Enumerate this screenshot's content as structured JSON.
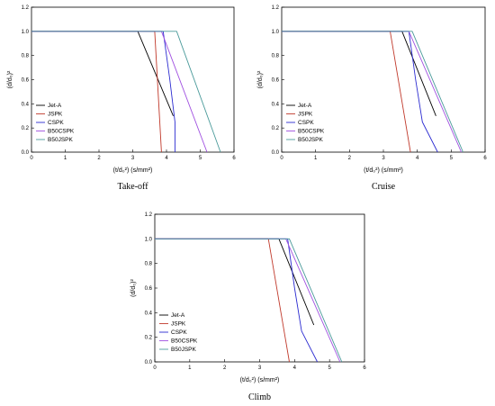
{
  "chart_data": [
    {
      "type": "line",
      "title": "Take-off",
      "xlabel": "(t/d₀²) (s/mm²)",
      "ylabel": "(d/d₀)²",
      "xlim": [
        0,
        6
      ],
      "ylim": [
        0,
        1.2
      ],
      "xticks": [
        "0",
        "1",
        "2",
        "3",
        "4",
        "5",
        "6"
      ],
      "yticks": [
        "0.0",
        "0.2",
        "0.4",
        "0.6",
        "0.8",
        "1.0",
        "1.2"
      ],
      "legend_position": "bottom-left",
      "grid": false,
      "series": [
        {
          "name": "Jet-A",
          "color": "#000000",
          "x": [
            0,
            3.15,
            4.2
          ],
          "y": [
            1.0,
            1.0,
            0.3
          ]
        },
        {
          "name": "JSPK",
          "color": "#c0392b",
          "x": [
            0,
            3.65,
            3.85
          ],
          "y": [
            1.0,
            1.0,
            0.0
          ]
        },
        {
          "name": "CSPK",
          "color": "#2a2ad0",
          "x": [
            0,
            3.9,
            4.1,
            4.25,
            4.25
          ],
          "y": [
            1.0,
            1.0,
            0.6,
            0.25,
            0.0
          ]
        },
        {
          "name": "B50CSPK",
          "color": "#a050e0",
          "x": [
            0,
            3.85,
            5.2
          ],
          "y": [
            1.0,
            1.0,
            0.0
          ]
        },
        {
          "name": "B50JSPK",
          "color": "#4a9a9a",
          "x": [
            0,
            4.3,
            5.6
          ],
          "y": [
            1.0,
            1.0,
            0.0
          ]
        }
      ]
    },
    {
      "type": "line",
      "title": "Cruise",
      "xlabel": "(t/d₀²) (s/mm²)",
      "ylabel": "(d/d₀)²",
      "xlim": [
        0,
        6
      ],
      "ylim": [
        0,
        1.2
      ],
      "xticks": [
        "0",
        "1",
        "2",
        "3",
        "4",
        "5",
        "6"
      ],
      "yticks": [
        "0.0",
        "0.2",
        "0.4",
        "0.6",
        "0.8",
        "1.0",
        "1.2"
      ],
      "legend_position": "bottom-left",
      "grid": false,
      "series": [
        {
          "name": "Jet-A",
          "color": "#000000",
          "x": [
            0,
            3.55,
            4.55
          ],
          "y": [
            1.0,
            1.0,
            0.3
          ]
        },
        {
          "name": "JSPK",
          "color": "#c0392b",
          "x": [
            0,
            3.2,
            3.8
          ],
          "y": [
            1.0,
            1.0,
            0.0
          ]
        },
        {
          "name": "CSPK",
          "color": "#2a2ad0",
          "x": [
            0,
            3.75,
            3.95,
            4.15,
            4.6
          ],
          "y": [
            1.0,
            1.0,
            0.6,
            0.25,
            0.0
          ]
        },
        {
          "name": "B50CSPK",
          "color": "#a050e0",
          "x": [
            0,
            3.75,
            5.3
          ],
          "y": [
            1.0,
            1.0,
            0.0
          ]
        },
        {
          "name": "B50JSPK",
          "color": "#4a9a9a",
          "x": [
            0,
            3.85,
            5.35
          ],
          "y": [
            1.0,
            1.0,
            0.0
          ]
        }
      ]
    },
    {
      "type": "line",
      "title": "Climb",
      "xlabel": "(t/d₀²) (s/mm²)",
      "ylabel": "(d/d₀)²",
      "xlim": [
        0,
        6
      ],
      "ylim": [
        0,
        1.2
      ],
      "xticks": [
        "0",
        "1",
        "2",
        "3",
        "4",
        "5",
        "6"
      ],
      "yticks": [
        "0.0",
        "0.2",
        "0.4",
        "0.6",
        "0.8",
        "1.0",
        "1.2"
      ],
      "legend_position": "bottom-left",
      "grid": false,
      "series": [
        {
          "name": "Jet-A",
          "color": "#000000",
          "x": [
            0,
            3.55,
            4.55
          ],
          "y": [
            1.0,
            1.0,
            0.3
          ]
        },
        {
          "name": "JSPK",
          "color": "#c0392b",
          "x": [
            0,
            3.25,
            3.85
          ],
          "y": [
            1.0,
            1.0,
            0.0
          ]
        },
        {
          "name": "CSPK",
          "color": "#2a2ad0",
          "x": [
            0,
            3.8,
            4.0,
            4.2,
            4.65
          ],
          "y": [
            1.0,
            1.0,
            0.6,
            0.25,
            0.0
          ]
        },
        {
          "name": "B50CSPK",
          "color": "#a050e0",
          "x": [
            0,
            3.75,
            5.3
          ],
          "y": [
            1.0,
            1.0,
            0.0
          ]
        },
        {
          "name": "B50JSPK",
          "color": "#4a9a9a",
          "x": [
            0,
            3.85,
            5.35
          ],
          "y": [
            1.0,
            1.0,
            0.0
          ]
        }
      ]
    }
  ]
}
